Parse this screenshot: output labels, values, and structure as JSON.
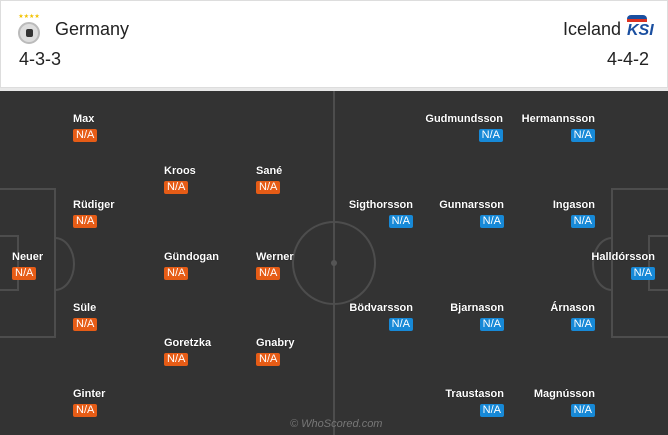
{
  "home": {
    "name": "Germany",
    "formation": "4-3-3",
    "stars": "★★★★",
    "color": "#e65c16",
    "players": [
      {
        "name": "Max",
        "rating": "N/A"
      },
      {
        "name": "Rüdiger",
        "rating": "N/A"
      },
      {
        "name": "Neuer",
        "rating": "N/A"
      },
      {
        "name": "Süle",
        "rating": "N/A"
      },
      {
        "name": "Ginter",
        "rating": "N/A"
      },
      {
        "name": "Kroos",
        "rating": "N/A"
      },
      {
        "name": "Gündogan",
        "rating": "N/A"
      },
      {
        "name": "Goretzka",
        "rating": "N/A"
      },
      {
        "name": "Sané",
        "rating": "N/A"
      },
      {
        "name": "Werner",
        "rating": "N/A"
      },
      {
        "name": "Gnabry",
        "rating": "N/A"
      }
    ]
  },
  "away": {
    "name": "Iceland",
    "formation": "4-4-2",
    "logo_text": "KSI",
    "color": "#1789d7",
    "players": [
      {
        "name": "Gudmundsson",
        "rating": "N/A"
      },
      {
        "name": "Hermannsson",
        "rating": "N/A"
      },
      {
        "name": "Sigthorsson",
        "rating": "N/A"
      },
      {
        "name": "Gunnarsson",
        "rating": "N/A"
      },
      {
        "name": "Ingason",
        "rating": "N/A"
      },
      {
        "name": "Halldórsson",
        "rating": "N/A"
      },
      {
        "name": "Bödvarsson",
        "rating": "N/A"
      },
      {
        "name": "Bjarnason",
        "rating": "N/A"
      },
      {
        "name": "Árnason",
        "rating": "N/A"
      },
      {
        "name": "Traustason",
        "rating": "N/A"
      },
      {
        "name": "Magnússon",
        "rating": "N/A"
      }
    ]
  },
  "watermark": "© WhoScored.com"
}
